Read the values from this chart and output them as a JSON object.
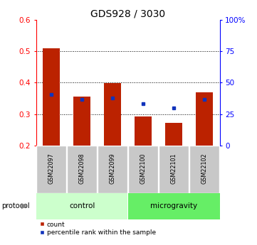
{
  "title": "GDS928 / 3030",
  "categories": [
    "GSM22097",
    "GSM22098",
    "GSM22099",
    "GSM22100",
    "GSM22101",
    "GSM22102"
  ],
  "red_values": [
    0.51,
    0.355,
    0.398,
    0.292,
    0.272,
    0.37
  ],
  "blue_values": [
    0.362,
    0.347,
    0.352,
    0.332,
    0.32,
    0.347
  ],
  "ymin": 0.2,
  "ymax": 0.6,
  "yright_min": 0,
  "yright_max": 100,
  "yticks_left": [
    0.2,
    0.3,
    0.4,
    0.5,
    0.6
  ],
  "yticks_right": [
    0,
    25,
    50,
    75,
    100
  ],
  "ytick_labels_right": [
    "0",
    "25",
    "50",
    "75",
    "100%"
  ],
  "bar_color": "#bb2200",
  "marker_color": "#1133bb",
  "control_group_n": 3,
  "microgravity_group_n": 3,
  "control_label": "control",
  "microgravity_label": "microgravity",
  "protocol_label": "protocol",
  "legend_count": "count",
  "legend_percentile": "percentile rank within the sample",
  "control_bg": "#ccffcc",
  "microgravity_bg": "#66ee66",
  "sample_label_bg": "#c8c8c8",
  "bar_width": 0.55,
  "title_fontsize": 10,
  "tick_fontsize": 7.5,
  "label_fontsize": 7.5,
  "grid_values": [
    0.3,
    0.4,
    0.5
  ]
}
